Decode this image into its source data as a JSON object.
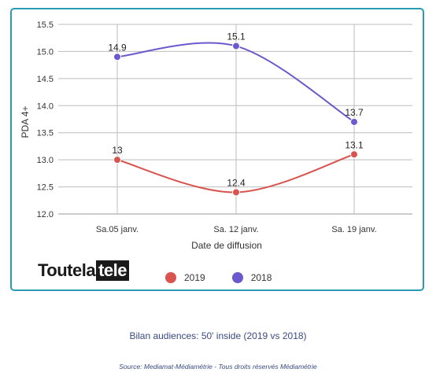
{
  "chart_data": {
    "type": "line",
    "categories": [
      "Sa.05 janv.",
      "Sa. 12 janv.",
      "Sa. 19 janv."
    ],
    "series": [
      {
        "name": "2019",
        "values": [
          13,
          12.4,
          13.1
        ],
        "labels": [
          "13",
          "12.4",
          "13.1"
        ],
        "color": "#d9534f"
      },
      {
        "name": "2018",
        "values": [
          14.9,
          15.1,
          13.7
        ],
        "labels": [
          "14.9",
          "15.1",
          "13.7"
        ],
        "color": "#6a5acd"
      }
    ],
    "xlabel": "Date de diffusion",
    "ylabel": "PDA 4+",
    "ylim": [
      12.0,
      15.5
    ],
    "yticks": [
      "12.0",
      "12.5",
      "13.0",
      "13.5",
      "14.0",
      "14.5",
      "15.0",
      "15.5"
    ],
    "grid": true,
    "legend_position": "bottom"
  },
  "logo": {
    "part1": "Toutela",
    "part2": "tele"
  },
  "caption": "Bilan audiences: 50' inside (2019 vs 2018)",
  "source": "Source: Mediamat-Médiamétrie - Tous droits réservés Médiamétrie"
}
